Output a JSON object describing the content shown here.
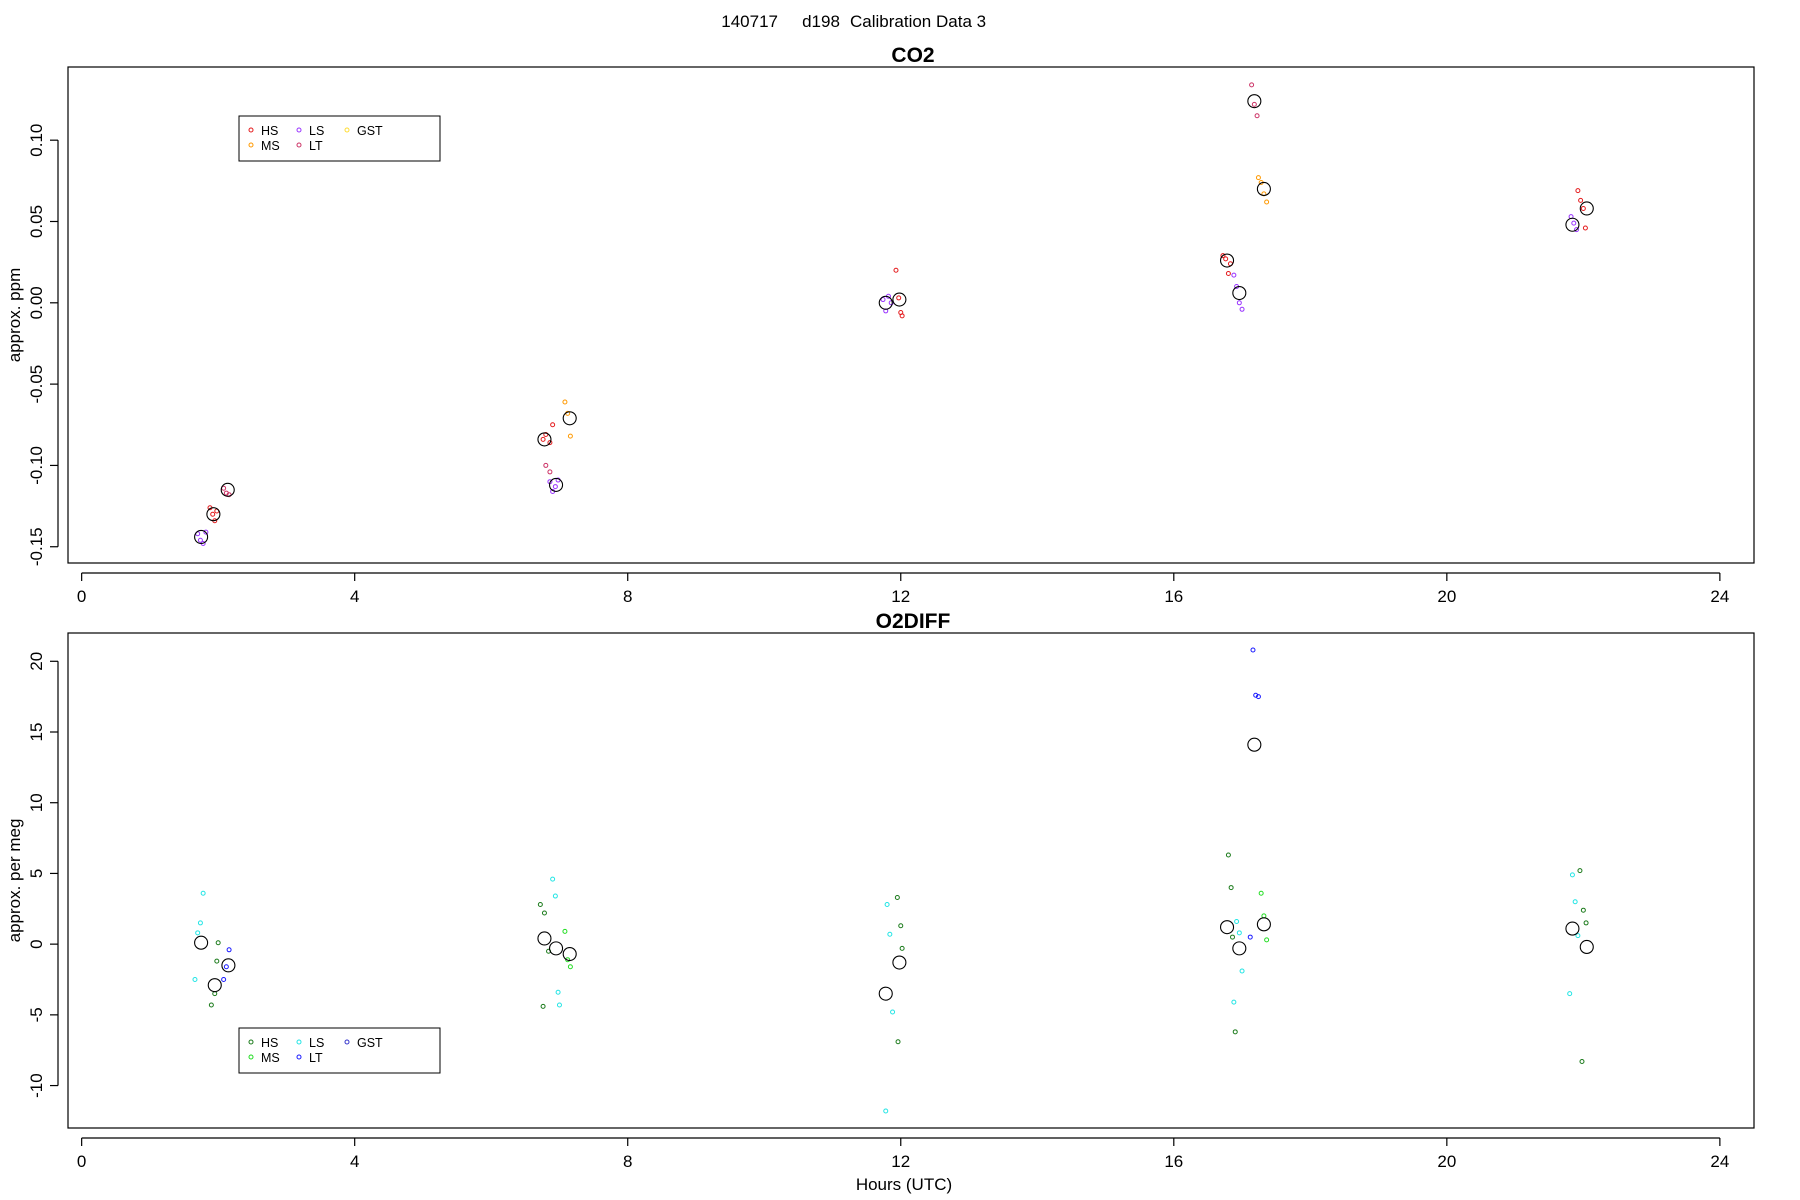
{
  "figure": {
    "title_parts": [
      "140717",
      "d198",
      "Calibration Data 3"
    ],
    "xlabel": "Hours (UTC)"
  },
  "chart_data": [
    {
      "type": "scatter",
      "title": "CO2",
      "ylabel": "approx. ppm",
      "xlim": [
        -0.2,
        24.5
      ],
      "ylim": [
        -0.16,
        0.145
      ],
      "xticks": [
        0,
        4,
        8,
        12,
        16,
        20,
        24
      ],
      "yticks": [
        -0.15,
        -0.1,
        -0.05,
        0.0,
        0.05,
        0.1
      ],
      "ytick_labels": [
        "-0.15",
        "-0.10",
        "-0.05",
        "0.00",
        "0.05",
        "0.10"
      ],
      "legend": {
        "placement": "top-left",
        "entries": [
          {
            "name": "HS",
            "color": "#e41a1c"
          },
          {
            "name": "MS",
            "color": "#ff9900"
          },
          {
            "name": "LS",
            "color": "#9933ff"
          },
          {
            "name": "LT",
            "color": "#cc3366"
          },
          {
            "name": "GST",
            "color": "#ffdd33"
          }
        ]
      },
      "series": [
        {
          "name": "HS",
          "color": "#e41a1c",
          "x": [
            1.88,
            1.92,
            1.95,
            1.98,
            6.76,
            6.8,
            6.86,
            6.9,
            11.93,
            11.97,
            12.0,
            12.02,
            16.72,
            16.76,
            16.8,
            16.83,
            21.92,
            21.96,
            22.0,
            22.03
          ],
          "y": [
            -0.126,
            -0.13,
            -0.134,
            -0.128,
            -0.084,
            -0.081,
            -0.086,
            -0.075,
            0.02,
            0.003,
            -0.006,
            -0.008,
            0.029,
            0.027,
            0.018,
            0.024,
            0.069,
            0.063,
            0.058,
            0.046
          ]
        },
        {
          "name": "MS",
          "color": "#ff9900",
          "x": [
            7.08,
            7.12,
            7.16,
            17.24,
            17.28,
            17.32,
            17.36
          ],
          "y": [
            -0.061,
            -0.068,
            -0.082,
            0.077,
            0.074,
            0.067,
            0.062
          ]
        },
        {
          "name": "LS",
          "color": "#9933ff",
          "x": [
            1.7,
            1.74,
            1.78,
            1.82,
            6.86,
            6.9,
            6.94,
            6.98,
            11.74,
            11.78,
            11.82,
            11.86,
            16.88,
            16.92,
            16.96,
            17.0,
            21.82,
            21.86,
            21.9
          ],
          "y": [
            -0.142,
            -0.146,
            -0.148,
            -0.141,
            -0.11,
            -0.116,
            -0.113,
            -0.109,
            0.002,
            -0.005,
            0.004,
            0.0,
            0.017,
            0.01,
            0.0,
            -0.004,
            0.053,
            0.049,
            0.045
          ]
        },
        {
          "name": "LT",
          "color": "#cc3366",
          "x": [
            2.08,
            2.12,
            2.16,
            6.8,
            6.86,
            17.14,
            17.18,
            17.22
          ],
          "y": [
            -0.114,
            -0.117,
            -0.118,
            -0.1,
            -0.104,
            0.134,
            0.122,
            0.115
          ]
        },
        {
          "name": "GST",
          "color": "#ffdd33",
          "x": [],
          "y": []
        },
        {
          "name": "",
          "color": "#000000",
          "marker": "mean",
          "x": [
            1.75,
            1.93,
            2.14,
            6.78,
            6.95,
            7.15,
            11.78,
            11.98,
            16.78,
            16.96,
            17.18,
            17.32,
            21.84,
            22.05
          ],
          "y": [
            -0.144,
            -0.13,
            -0.115,
            -0.084,
            -0.112,
            -0.071,
            0.0,
            0.002,
            0.026,
            0.006,
            0.124,
            0.07,
            0.048,
            0.058
          ]
        }
      ]
    },
    {
      "type": "scatter",
      "title": "O2DIFF",
      "ylabel": "approx. per meg",
      "xlim": [
        -0.2,
        24.5
      ],
      "ylim": [
        -13,
        22
      ],
      "xticks": [
        0,
        4,
        8,
        12,
        16,
        20,
        24
      ],
      "yticks": [
        -10,
        -5,
        0,
        5,
        10,
        15,
        20
      ],
      "ytick_labels": [
        "-10",
        "-5",
        "0",
        "5",
        "10",
        "15",
        "20"
      ],
      "legend": {
        "placement": "bottom-left",
        "entries": [
          {
            "name": "HS",
            "color": "#1a7a1a"
          },
          {
            "name": "MS",
            "color": "#22dd22"
          },
          {
            "name": "LS",
            "color": "#22e5e5"
          },
          {
            "name": "LT",
            "color": "#1a1aff"
          },
          {
            "name": "GST",
            "color": "#3333cc"
          }
        ]
      },
      "series": [
        {
          "name": "HS",
          "color": "#1a7a1a",
          "x": [
            1.9,
            1.95,
            1.98,
            2.0,
            6.72,
            6.78,
            6.84,
            6.76,
            11.95,
            12.0,
            12.02,
            11.96,
            16.8,
            16.84,
            16.86,
            16.9,
            21.95,
            22.0,
            22.04,
            21.98
          ],
          "y": [
            -4.3,
            -3.5,
            -1.2,
            0.1,
            2.8,
            2.2,
            -0.5,
            -4.4,
            3.3,
            1.3,
            -0.3,
            -6.9,
            6.3,
            4.0,
            0.5,
            -6.2,
            5.2,
            2.4,
            1.5,
            -8.3
          ]
        },
        {
          "name": "MS",
          "color": "#22dd22",
          "x": [
            7.08,
            7.12,
            7.16,
            17.28,
            17.32,
            17.36
          ],
          "y": [
            0.9,
            -1.1,
            -1.6,
            3.6,
            2.0,
            0.3
          ]
        },
        {
          "name": "LS",
          "color": "#22e5e5",
          "x": [
            1.66,
            1.7,
            1.74,
            1.78,
            6.9,
            6.94,
            6.98,
            7.0,
            11.8,
            11.84,
            11.88,
            11.78,
            16.92,
            16.96,
            17.0,
            16.88,
            21.84,
            21.88,
            21.92,
            21.8
          ],
          "y": [
            -2.5,
            0.8,
            1.5,
            3.6,
            4.6,
            3.4,
            -3.4,
            -4.3,
            2.8,
            0.7,
            -4.8,
            -11.8,
            1.6,
            0.8,
            -1.9,
            -4.1,
            4.9,
            3.0,
            0.6,
            -3.5
          ]
        },
        {
          "name": "LT",
          "color": "#1a1aff",
          "x": [
            2.08,
            2.12,
            2.16,
            17.16,
            17.2,
            17.24,
            17.12
          ],
          "y": [
            -2.5,
            -1.6,
            -0.4,
            20.8,
            17.6,
            17.5,
            0.5
          ]
        },
        {
          "name": "GST",
          "color": "#3333cc",
          "x": [],
          "y": []
        },
        {
          "name": "",
          "color": "#000000",
          "marker": "mean",
          "x": [
            1.75,
            1.95,
            2.15,
            6.78,
            6.95,
            7.15,
            11.78,
            11.98,
            16.78,
            16.96,
            17.18,
            17.32,
            21.84,
            22.05
          ],
          "y": [
            0.1,
            -2.9,
            -1.5,
            0.4,
            -0.3,
            -0.7,
            -3.5,
            -1.3,
            1.2,
            -0.3,
            14.1,
            1.4,
            1.1,
            -0.2
          ]
        }
      ]
    }
  ]
}
